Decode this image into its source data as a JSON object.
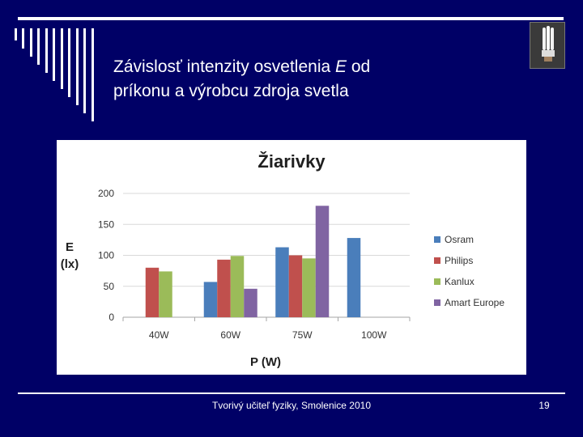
{
  "slide": {
    "title_line1_pre": "Závislosť intenzity osvetlenia ",
    "title_line1_em": "E",
    "title_line1_post": " od",
    "title_line2": "príkonu a výrobcu zdroja svetla",
    "image_icon": "fluorescent-bulb-icon",
    "footer_text": "Tvorivý učiteľ fyziky, Smolenice 2010",
    "page_number": "19"
  },
  "colors": {
    "background": "#000066",
    "osram": "#4a7ebb",
    "philips": "#c0504d",
    "kanlux": "#9bbb59",
    "amart": "#8064a2"
  },
  "chart_data": {
    "type": "bar",
    "title": "Žiarivky",
    "xlabel": "P (W)",
    "ylabel_line1": "E",
    "ylabel_line2": "(lx)",
    "categories": [
      "40W",
      "60W",
      "75W",
      "100W"
    ],
    "ylim": [
      0,
      200
    ],
    "yticks": [
      "0",
      "50",
      "100",
      "150",
      "200"
    ],
    "grid": true,
    "legend_position": "right",
    "series": [
      {
        "name": "Osram",
        "color": "#4a7ebb",
        "values": [
          null,
          57,
          113,
          128
        ]
      },
      {
        "name": "Philips",
        "color": "#c0504d",
        "values": [
          80,
          93,
          100,
          null
        ]
      },
      {
        "name": "Kanlux",
        "color": "#9bbb59",
        "values": [
          74,
          99,
          95,
          null
        ]
      },
      {
        "name": "Amart Europe",
        "color": "#8064a2",
        "values": [
          null,
          46,
          180,
          null
        ]
      }
    ]
  }
}
